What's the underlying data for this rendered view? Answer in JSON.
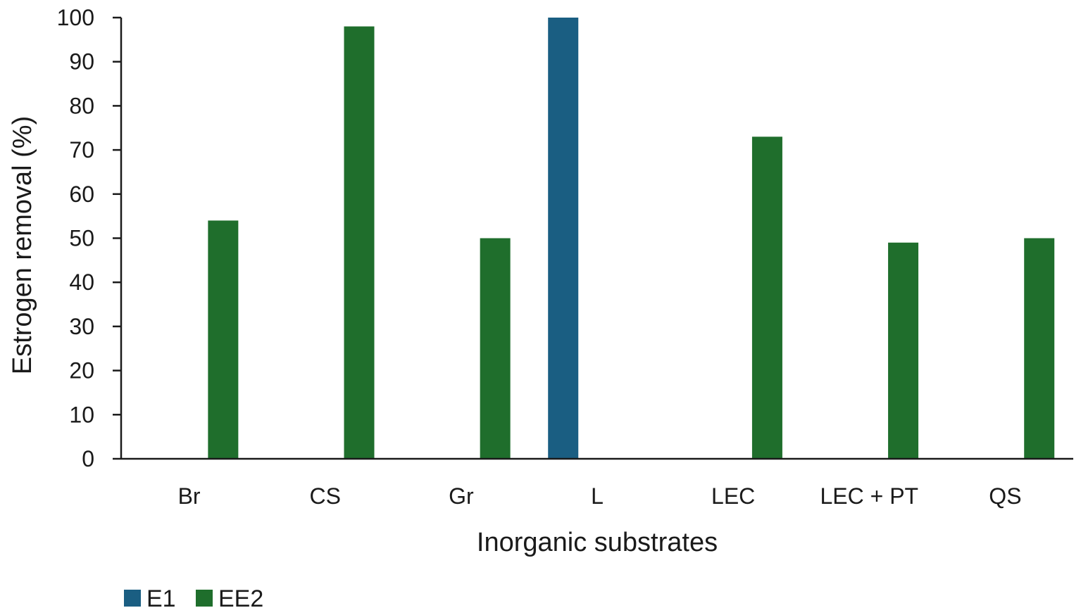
{
  "chart_data": {
    "type": "bar",
    "categories": [
      "Br",
      "CS",
      "Gr",
      "L",
      "LEC",
      "LEC + PT",
      "QS"
    ],
    "series": [
      {
        "name": "E1",
        "color": "#1a5e82",
        "values": [
          null,
          null,
          null,
          100,
          null,
          null,
          null
        ]
      },
      {
        "name": "EE2",
        "color": "#1f6e2c",
        "values": [
          54,
          98,
          50,
          null,
          73,
          49,
          50
        ]
      }
    ],
    "xlabel": "Inorganic substrates",
    "ylabel": "Estrogen removal (%)",
    "ylim": [
      0,
      100
    ],
    "yticks": [
      0,
      10,
      20,
      30,
      40,
      50,
      60,
      70,
      80,
      90,
      100
    ],
    "grid": false,
    "legend_position": "bottom-left"
  }
}
